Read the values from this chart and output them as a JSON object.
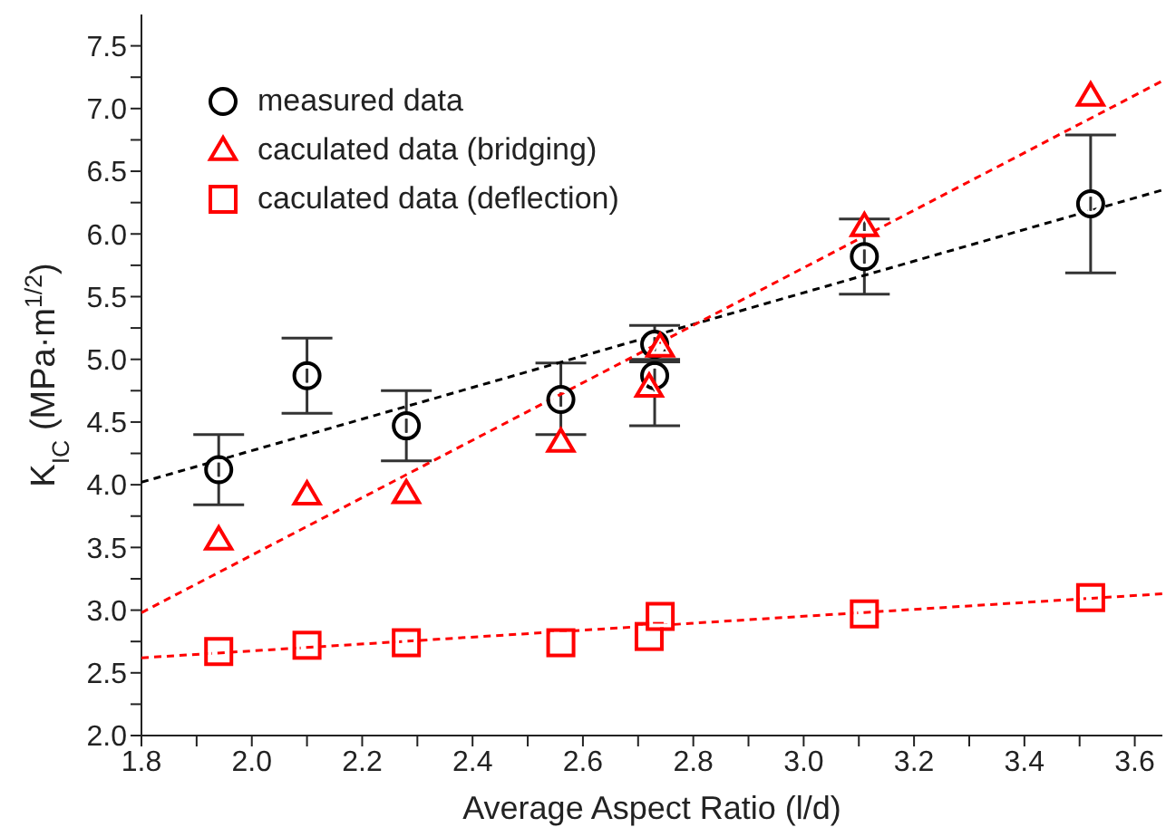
{
  "chart_data": {
    "type": "scatter",
    "xlabel": "Average Aspect Ratio (l/d)",
    "ylabel": "K$_{IC}$ (MPa·m$^{1/2}$)",
    "xlim": [
      1.8,
      3.65
    ],
    "ylim": [
      2.0,
      7.75
    ],
    "xticks": [
      {
        "value": 1.8,
        "label": "1.8"
      },
      {
        "value": 1.9,
        "label": null
      },
      {
        "value": 2.0,
        "label": "2.0"
      },
      {
        "value": 2.1,
        "label": null
      },
      {
        "value": 2.2,
        "label": "2.2"
      },
      {
        "value": 2.3,
        "label": null
      },
      {
        "value": 2.4,
        "label": "2.4"
      },
      {
        "value": 2.5,
        "label": null
      },
      {
        "value": 2.6,
        "label": "2.6"
      },
      {
        "value": 2.7,
        "label": null
      },
      {
        "value": 2.8,
        "label": "2.8"
      },
      {
        "value": 2.9,
        "label": null
      },
      {
        "value": 3.0,
        "label": "3.0"
      },
      {
        "value": 3.1,
        "label": null
      },
      {
        "value": 3.2,
        "label": "3.2"
      },
      {
        "value": 3.3,
        "label": null
      },
      {
        "value": 3.4,
        "label": "3.4"
      },
      {
        "value": 3.5,
        "label": null
      },
      {
        "value": 3.6,
        "label": "3.6"
      }
    ],
    "yticks": [
      {
        "value": 2.0,
        "label": "2.0"
      },
      {
        "value": 2.25,
        "label": null
      },
      {
        "value": 2.5,
        "label": "2.5"
      },
      {
        "value": 2.75,
        "label": null
      },
      {
        "value": 3.0,
        "label": "3.0"
      },
      {
        "value": 3.25,
        "label": null
      },
      {
        "value": 3.5,
        "label": "3.5"
      },
      {
        "value": 3.75,
        "label": null
      },
      {
        "value": 4.0,
        "label": "4.0"
      },
      {
        "value": 4.25,
        "label": null
      },
      {
        "value": 4.5,
        "label": "4.5"
      },
      {
        "value": 4.75,
        "label": null
      },
      {
        "value": 5.0,
        "label": "5.0"
      },
      {
        "value": 5.25,
        "label": null
      },
      {
        "value": 5.5,
        "label": "5.5"
      },
      {
        "value": 5.75,
        "label": null
      },
      {
        "value": 6.0,
        "label": "6.0"
      },
      {
        "value": 6.25,
        "label": null
      },
      {
        "value": 6.5,
        "label": "6.5"
      },
      {
        "value": 6.75,
        "label": null
      },
      {
        "value": 7.0,
        "label": "7.0"
      },
      {
        "value": 7.25,
        "label": null
      },
      {
        "value": 7.5,
        "label": "7.5"
      }
    ],
    "grid": false,
    "legend": "top left",
    "series": [
      {
        "name": "measured data",
        "marker": "circle",
        "color": "#000000",
        "x": [
          1.94,
          2.1,
          2.28,
          2.56,
          2.73,
          2.73,
          3.11,
          3.52
        ],
        "values": [
          4.12,
          4.87,
          4.47,
          4.68,
          5.12,
          4.87,
          5.82,
          6.24
        ],
        "errors": [
          [
            3.84,
            4.4
          ],
          [
            4.57,
            5.17
          ],
          [
            4.19,
            4.75
          ],
          [
            4.4,
            4.97
          ],
          [
            4.98,
            5.27
          ],
          [
            4.47,
            5.0
          ],
          [
            5.52,
            6.12
          ],
          [
            5.69,
            6.79
          ]
        ]
      },
      {
        "name": "caculated data (bridging)",
        "marker": "triangle",
        "color": "#ff0000",
        "x": [
          1.94,
          2.1,
          2.28,
          2.56,
          2.72,
          2.74,
          3.11,
          3.52
        ],
        "values": [
          3.56,
          3.92,
          3.93,
          4.34,
          4.78,
          5.1,
          6.06,
          7.1
        ]
      },
      {
        "name": "caculated data (deflection)",
        "marker": "square",
        "color": "#ff0000",
        "x": [
          1.94,
          2.1,
          2.28,
          2.56,
          2.72,
          2.74,
          3.11,
          3.52
        ],
        "values": [
          2.67,
          2.72,
          2.74,
          2.74,
          2.79,
          2.95,
          2.97,
          3.1
        ]
      },
      {
        "type": "line",
        "marker": "none",
        "line_style": "dashed",
        "color": "#000000",
        "x": [
          1.8,
          3.65
        ],
        "values": [
          4.02,
          6.35
        ]
      },
      {
        "type": "line",
        "marker": "none",
        "line_style": "dashed",
        "color": "#ff0000",
        "x": [
          1.8,
          3.65
        ],
        "values": [
          2.98,
          7.22
        ]
      },
      {
        "type": "line",
        "marker": "none",
        "line_style": "dashed",
        "color": "#ff0000",
        "x": [
          1.8,
          3.65
        ],
        "values": [
          2.62,
          3.13
        ]
      }
    ]
  }
}
